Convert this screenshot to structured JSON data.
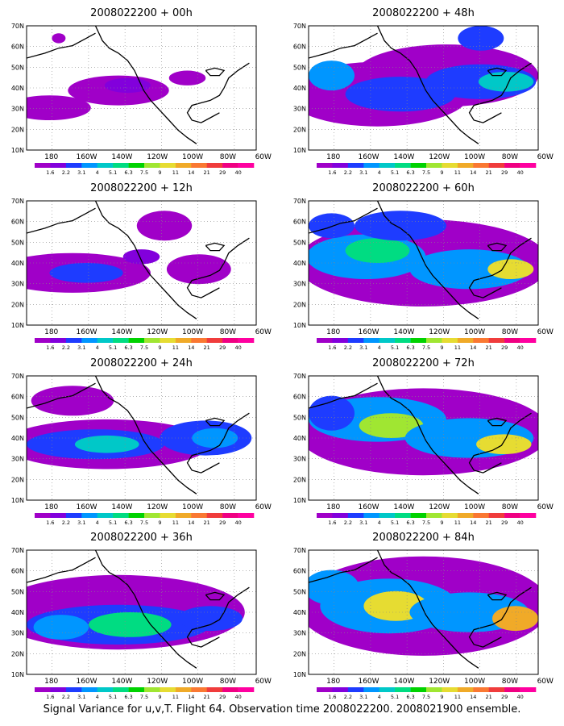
{
  "figure": {
    "caption": "Signal Variance for u,v,T. Flight 64. Observation time 2008022200. 2008021900 ensemble.",
    "lat_labels": [
      "70N",
      "60N",
      "50N",
      "40N",
      "30N",
      "20N",
      "10N"
    ],
    "lon_labels": [
      "180",
      "160W",
      "140W",
      "120W",
      "100W",
      "80W",
      "60W"
    ],
    "colorbar_labels": [
      "1.6",
      "2.2",
      "3.1",
      "4",
      "5.1",
      "6.3",
      "7.5",
      "9",
      "11",
      "14",
      "21",
      "29",
      "40"
    ],
    "colorbar_colors": [
      "#a000c8",
      "#8200dc",
      "#1e3cff",
      "#0096ff",
      "#00c8c8",
      "#00dc82",
      "#00d200",
      "#a0e632",
      "#e6dc32",
      "#f0aa28",
      "#fa7832",
      "#f03c3c",
      "#f00082",
      "#ff00a0"
    ]
  },
  "panels": [
    {
      "title": "2008022200 + 00h"
    },
    {
      "title": "2008022200 + 48h"
    },
    {
      "title": "2008022200 + 12h"
    },
    {
      "title": "2008022200 + 60h"
    },
    {
      "title": "2008022200 + 24h"
    },
    {
      "title": "2008022200 + 72h"
    },
    {
      "title": "2008022200 + 36h"
    },
    {
      "title": "2008022200 + 84h"
    }
  ]
}
